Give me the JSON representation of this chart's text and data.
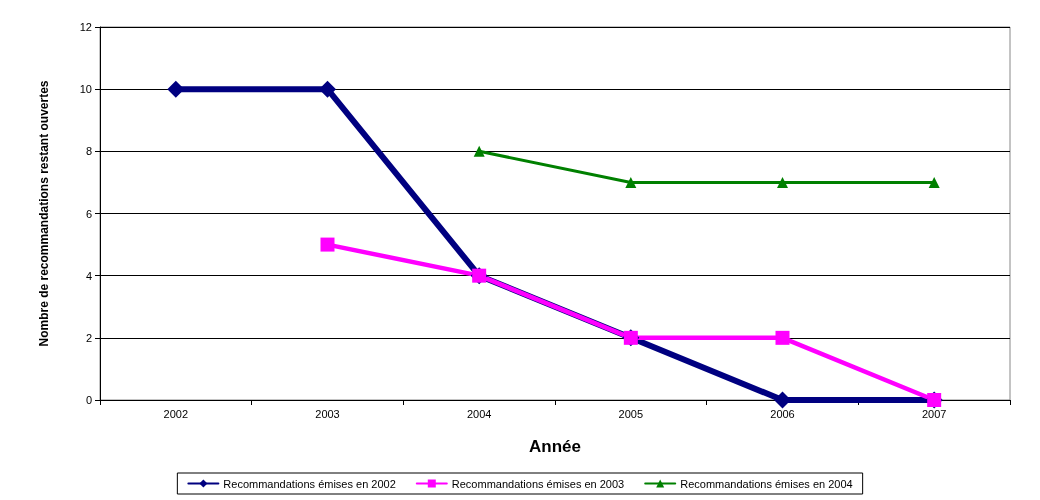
{
  "chart_data": {
    "type": "line",
    "xlabel": "Année",
    "ylabel": "Nombre de recommandations restant ouvertes",
    "categories": [
      "2002",
      "2003",
      "2004",
      "2005",
      "2006",
      "2007"
    ],
    "series": [
      {
        "name": "Recommandations émises en 2002",
        "color": "#000080",
        "marker": "diamond",
        "values": [
          10,
          10,
          4,
          2,
          0,
          0
        ]
      },
      {
        "name": "Recommandations émises en 2003",
        "color": "#ff00ff",
        "marker": "square",
        "values": [
          null,
          5,
          4,
          2,
          2,
          0
        ]
      },
      {
        "name": "Recommandations émises en 2004",
        "color": "#008000",
        "marker": "triangle",
        "values": [
          null,
          null,
          8,
          7,
          7,
          7
        ]
      }
    ],
    "ylim": [
      0,
      12
    ],
    "yticks": [
      0,
      2,
      4,
      6,
      8,
      10,
      12
    ],
    "grid": "y",
    "legend": "bottom",
    "line_style": "solid"
  }
}
